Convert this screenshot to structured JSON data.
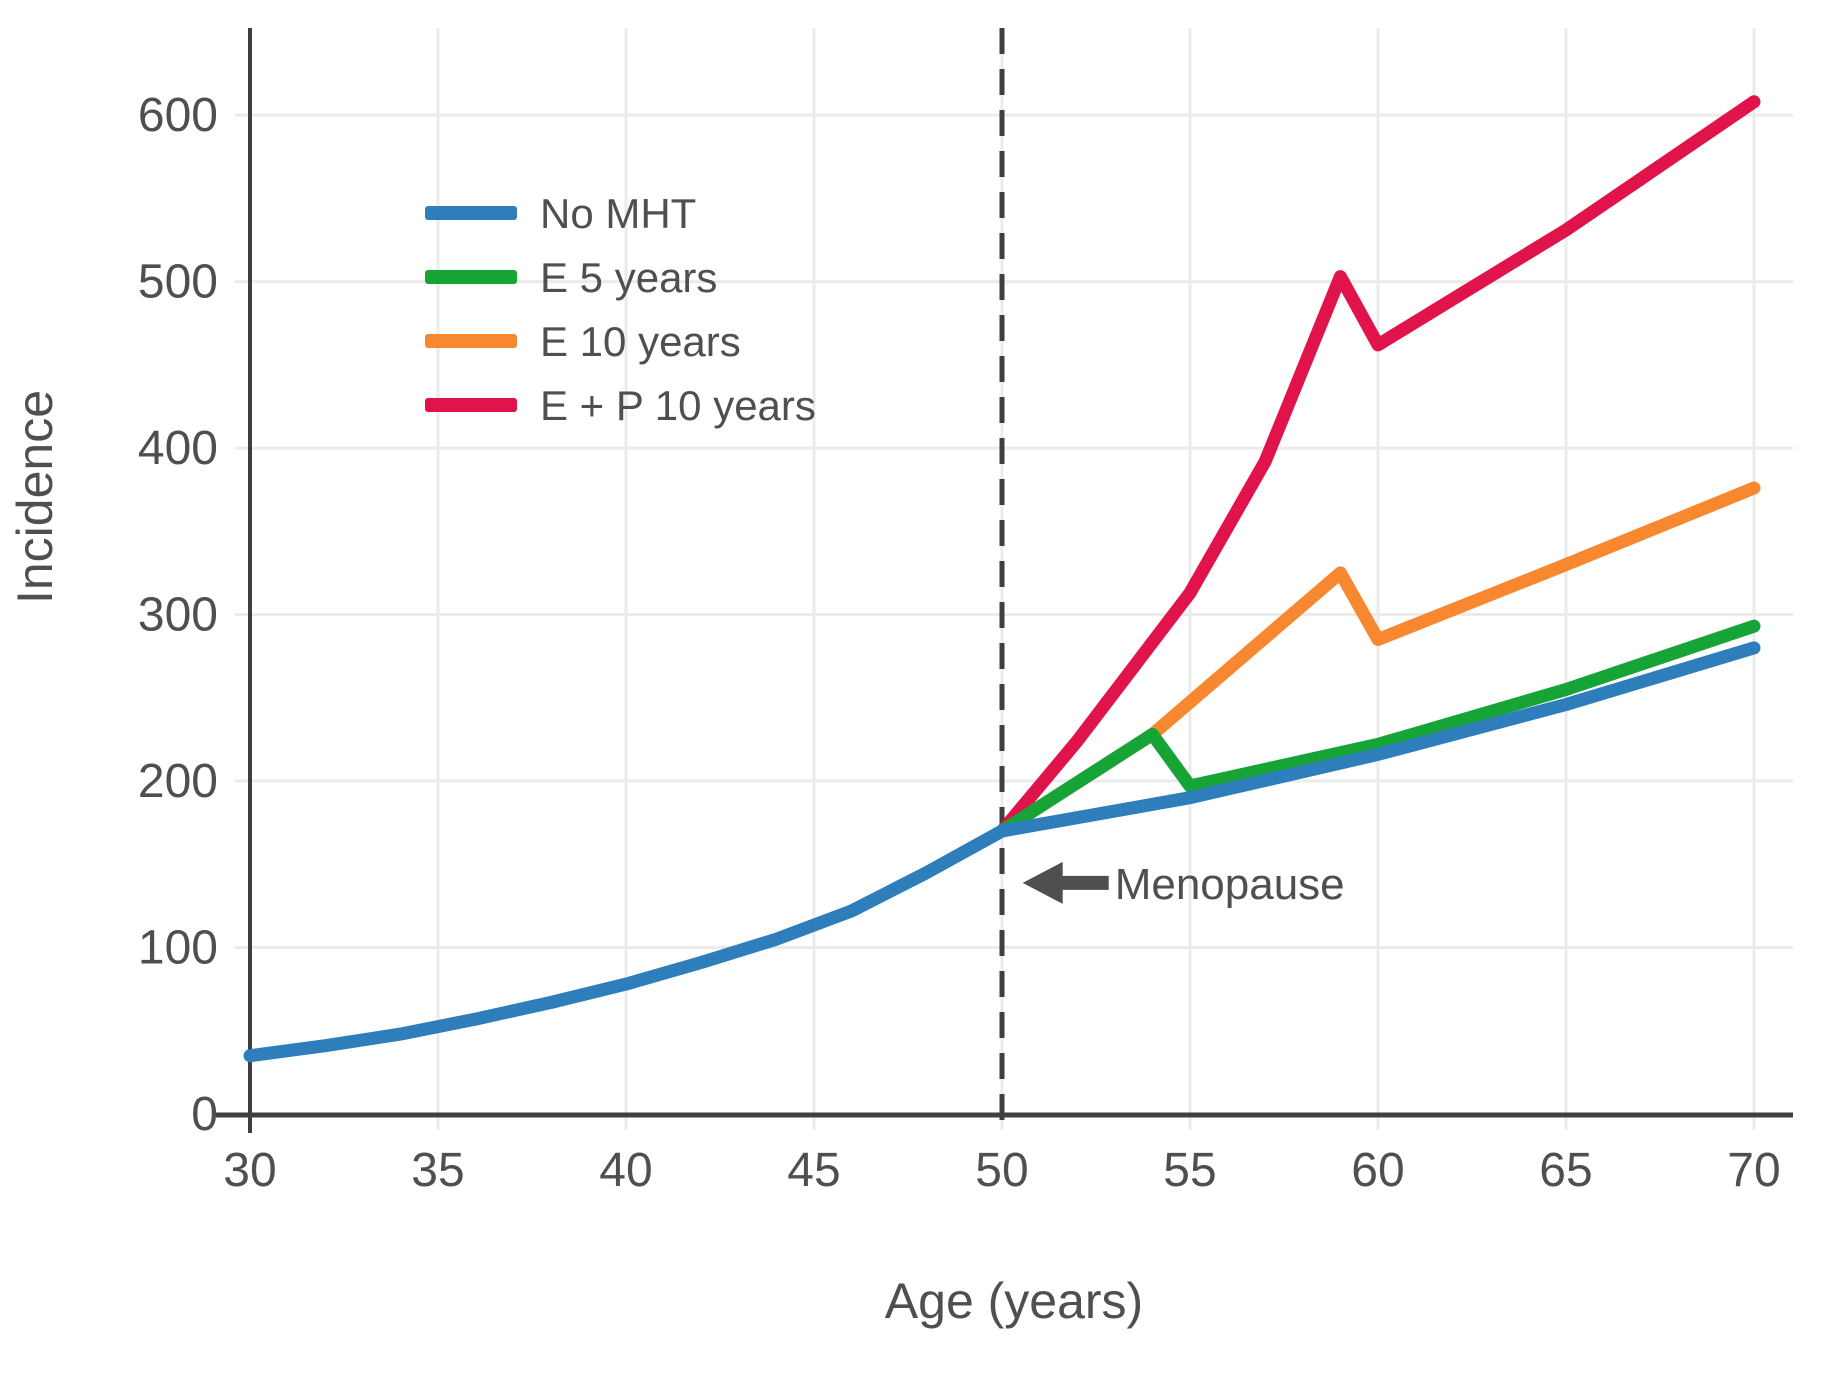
{
  "figure": {
    "background": "#ffffff",
    "text_color": "#4F4F4F",
    "grid_color": "#EBEBEB",
    "axis_color": "#3F3F3F"
  },
  "chart_data": {
    "type": "line",
    "title": "",
    "xlabel": "Age (years)",
    "ylabel": "Incidence",
    "x_ticks": [
      30,
      35,
      40,
      45,
      50,
      55,
      60,
      65,
      70
    ],
    "y_ticks": [
      0,
      100,
      200,
      300,
      400,
      500,
      600
    ],
    "xlim": [
      30,
      70
    ],
    "ylim": [
      0,
      650
    ],
    "grid": true,
    "legend_position": "upper-left-inside",
    "series": [
      {
        "name": "No MHT",
        "color": "#2E7EBB",
        "x": [
          30,
          32,
          34,
          36,
          38,
          40,
          42,
          44,
          46,
          48,
          50,
          55,
          60,
          65,
          70
        ],
        "y": [
          35,
          41,
          48,
          57,
          67,
          78,
          91,
          105,
          122,
          145,
          170,
          190,
          216,
          246,
          280
        ]
      },
      {
        "name": "E 5 years",
        "color": "#17A437",
        "x": [
          50,
          54,
          55,
          60,
          65,
          70
        ],
        "y": [
          170,
          228,
          197,
          222,
          255,
          293
        ]
      },
      {
        "name": "E 10 years",
        "color": "#F8882F",
        "x": [
          50,
          54,
          59,
          60,
          65,
          70
        ],
        "y": [
          170,
          228,
          325,
          285,
          330,
          376
        ]
      },
      {
        "name": "E + P 10 years",
        "color": "#E0144A",
        "x": [
          50,
          52,
          55,
          57,
          59,
          60,
          65,
          70
        ],
        "y": [
          170,
          224,
          313,
          392,
          503,
          462,
          531,
          608
        ]
      }
    ],
    "menopause_line": {
      "x": 50,
      "style": "dashed"
    },
    "annotation": {
      "text": "Menopause",
      "arrow": "left",
      "x": 50.55,
      "y": 140
    }
  }
}
